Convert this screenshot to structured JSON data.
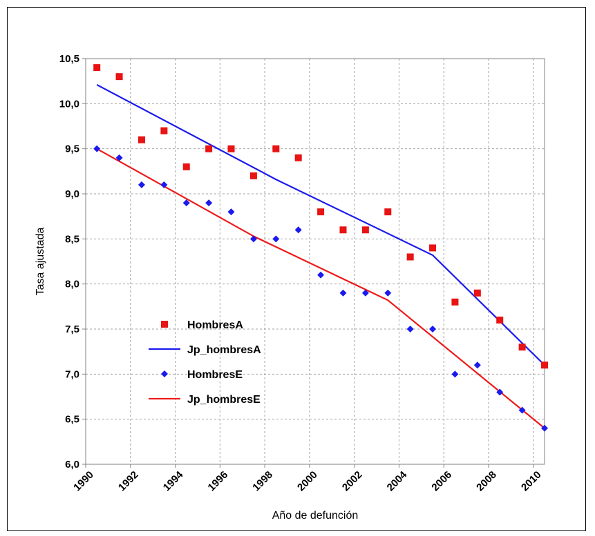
{
  "chart_data": {
    "type": "scatter",
    "xlabel": "Año de defunción",
    "ylabel": "Tasa ajustada",
    "xlim": [
      1990,
      2010.5
    ],
    "ylim": [
      6.0,
      10.5
    ],
    "x_ticks": [
      "1990",
      "1992",
      "1994",
      "1996",
      "1998",
      "2000",
      "2002",
      "2004",
      "2006",
      "2008",
      "2010"
    ],
    "y_ticks": [
      "6,0",
      "6,5",
      "7,0",
      "7,5",
      "8,0",
      "8,5",
      "9,0",
      "9,5",
      "10,0",
      "10,5"
    ],
    "x_tick_values": [
      1990,
      1992,
      1994,
      1996,
      1998,
      2000,
      2002,
      2004,
      2006,
      2008,
      2010
    ],
    "y_tick_values": [
      6.0,
      6.5,
      7.0,
      7.5,
      8.0,
      8.5,
      9.0,
      9.5,
      10.0,
      10.5
    ],
    "grid": true,
    "legend_placement": "bottom-left",
    "series": [
      {
        "name": "HombresA",
        "kind": "markers",
        "marker": "square",
        "color": "#e81313",
        "x": [
          1990.5,
          1991.5,
          1992.5,
          1993.5,
          1994.5,
          1995.5,
          1996.5,
          1997.5,
          1998.5,
          1999.5,
          2000.5,
          2001.5,
          2002.5,
          2003.5,
          2004.5,
          2005.5,
          2006.5,
          2007.5,
          2008.5,
          2009.5,
          2010.5
        ],
        "y": [
          10.4,
          10.3,
          9.6,
          9.7,
          9.3,
          9.5,
          9.5,
          9.2,
          9.5,
          9.4,
          8.8,
          8.6,
          8.6,
          8.8,
          8.3,
          8.4,
          7.8,
          7.9,
          7.6,
          7.3,
          7.1
        ]
      },
      {
        "name": "Jp_hombresA",
        "kind": "line",
        "color": "#1a1aee",
        "x": [
          1990.5,
          1998.5,
          2005.5,
          2010.5
        ],
        "y": [
          10.21,
          9.16,
          8.32,
          7.1
        ]
      },
      {
        "name": "HombresE",
        "kind": "markers",
        "marker": "diamond",
        "color": "#1a1aee",
        "x": [
          1990.5,
          1991.5,
          1992.5,
          1993.5,
          1994.5,
          1995.5,
          1996.5,
          1997.5,
          1998.5,
          1999.5,
          2000.5,
          2001.5,
          2002.5,
          2003.5,
          2004.5,
          2005.5,
          2006.5,
          2007.5,
          2008.5,
          2009.5,
          2010.5
        ],
        "y": [
          9.5,
          9.4,
          9.1,
          9.1,
          8.9,
          8.9,
          8.8,
          8.5,
          8.5,
          8.6,
          8.1,
          7.9,
          7.9,
          7.9,
          7.5,
          7.5,
          7.0,
          7.1,
          6.8,
          6.6,
          6.4
        ]
      },
      {
        "name": "Jp_hombresE",
        "kind": "line",
        "color": "#ee1a1a",
        "x": [
          1990.5,
          1997.5,
          2003.5,
          2010.5
        ],
        "y": [
          9.5,
          8.53,
          7.82,
          6.4
        ]
      }
    ]
  }
}
